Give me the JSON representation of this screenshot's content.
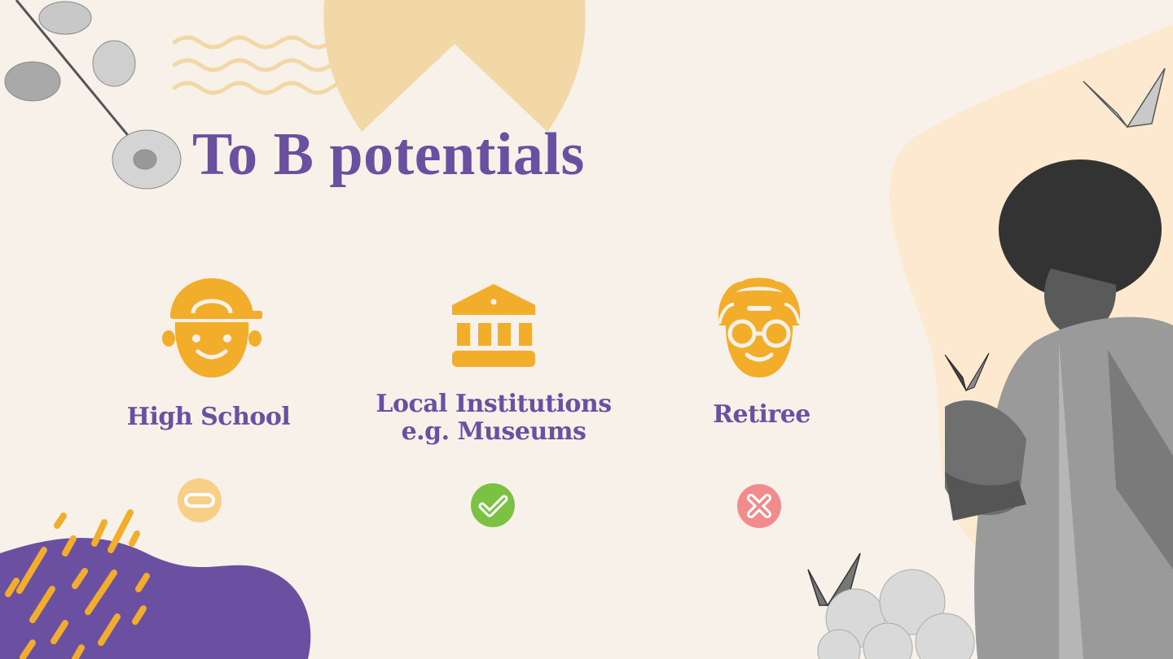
{
  "slide": {
    "title": "To B potentials",
    "colors": {
      "background": "#f8f1ea",
      "title": "#6b4fa1",
      "icon": "#f2ae2a",
      "neutral_badge": "#f7cf86",
      "positive_badge": "#7cc242",
      "negative_badge": "#f28b8b",
      "blob_purple": "#6b4fa1",
      "blob_cream": "#fde9cf",
      "sun": "#f2d8a6"
    },
    "segments": [
      {
        "label": "High School",
        "icon": "student-cap-face-icon",
        "status": "neutral",
        "status_icon": "minus-icon"
      },
      {
        "label_line1": "Local Institutions",
        "label_line2": "e.g. Museums",
        "icon": "museum-building-icon",
        "status": "positive",
        "status_icon": "check-icon"
      },
      {
        "label": "Retiree",
        "icon": "elderly-face-glasses-icon",
        "status": "negative",
        "status_icon": "cross-icon"
      }
    ]
  }
}
